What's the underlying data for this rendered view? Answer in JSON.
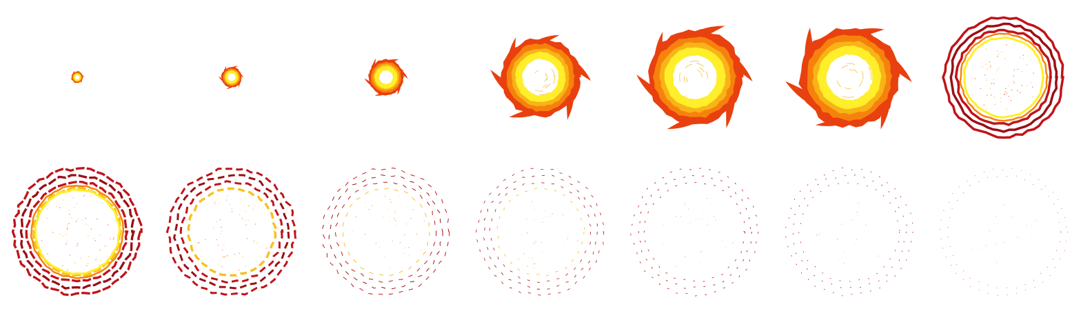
{
  "sprite_sheet": {
    "description_colors": {
      "outer": "#e8400f",
      "orange": "#f6820d",
      "amber": "#f8b417",
      "yellow": "#ffee2a",
      "core": "#ffffff",
      "ring_red": "#c0141a",
      "ring_dark": "#9a0f16",
      "ring_gold": "#f8c020"
    },
    "rows": 2,
    "columns": 7,
    "frames": [
      {
        "stage": "burst",
        "radius_fraction": 0.09,
        "rings": 0,
        "fade": 0.0
      },
      {
        "stage": "burst",
        "radius_fraction": 0.16,
        "rings": 0,
        "fade": 0.0
      },
      {
        "stage": "burst",
        "radius_fraction": 0.28,
        "rings": 0,
        "fade": 0.0
      },
      {
        "stage": "fireball",
        "radius_fraction": 0.62,
        "rings": 0,
        "fade": 0.0
      },
      {
        "stage": "fireball",
        "radius_fraction": 0.75,
        "rings": 0,
        "fade": 0.0
      },
      {
        "stage": "fireball",
        "radius_fraction": 0.78,
        "rings": 0,
        "fade": 0.0
      },
      {
        "stage": "shockwave",
        "radius_fraction": 0.8,
        "rings": 3,
        "fade": 0.0
      },
      {
        "stage": "shockwave",
        "radius_fraction": 0.85,
        "rings": 4,
        "fade": 0.1
      },
      {
        "stage": "shockwave",
        "radius_fraction": 0.85,
        "rings": 4,
        "fade": 0.3
      },
      {
        "stage": "dissipate",
        "radius_fraction": 0.85,
        "rings": 4,
        "fade": 0.55
      },
      {
        "stage": "dissipate",
        "radius_fraction": 0.85,
        "rings": 4,
        "fade": 0.7
      },
      {
        "stage": "dissipate",
        "radius_fraction": 0.85,
        "rings": 3,
        "fade": 0.8
      },
      {
        "stage": "dissipate",
        "radius_fraction": 0.85,
        "rings": 3,
        "fade": 0.88
      },
      {
        "stage": "dissipate",
        "radius_fraction": 0.85,
        "rings": 2,
        "fade": 0.95
      }
    ]
  }
}
